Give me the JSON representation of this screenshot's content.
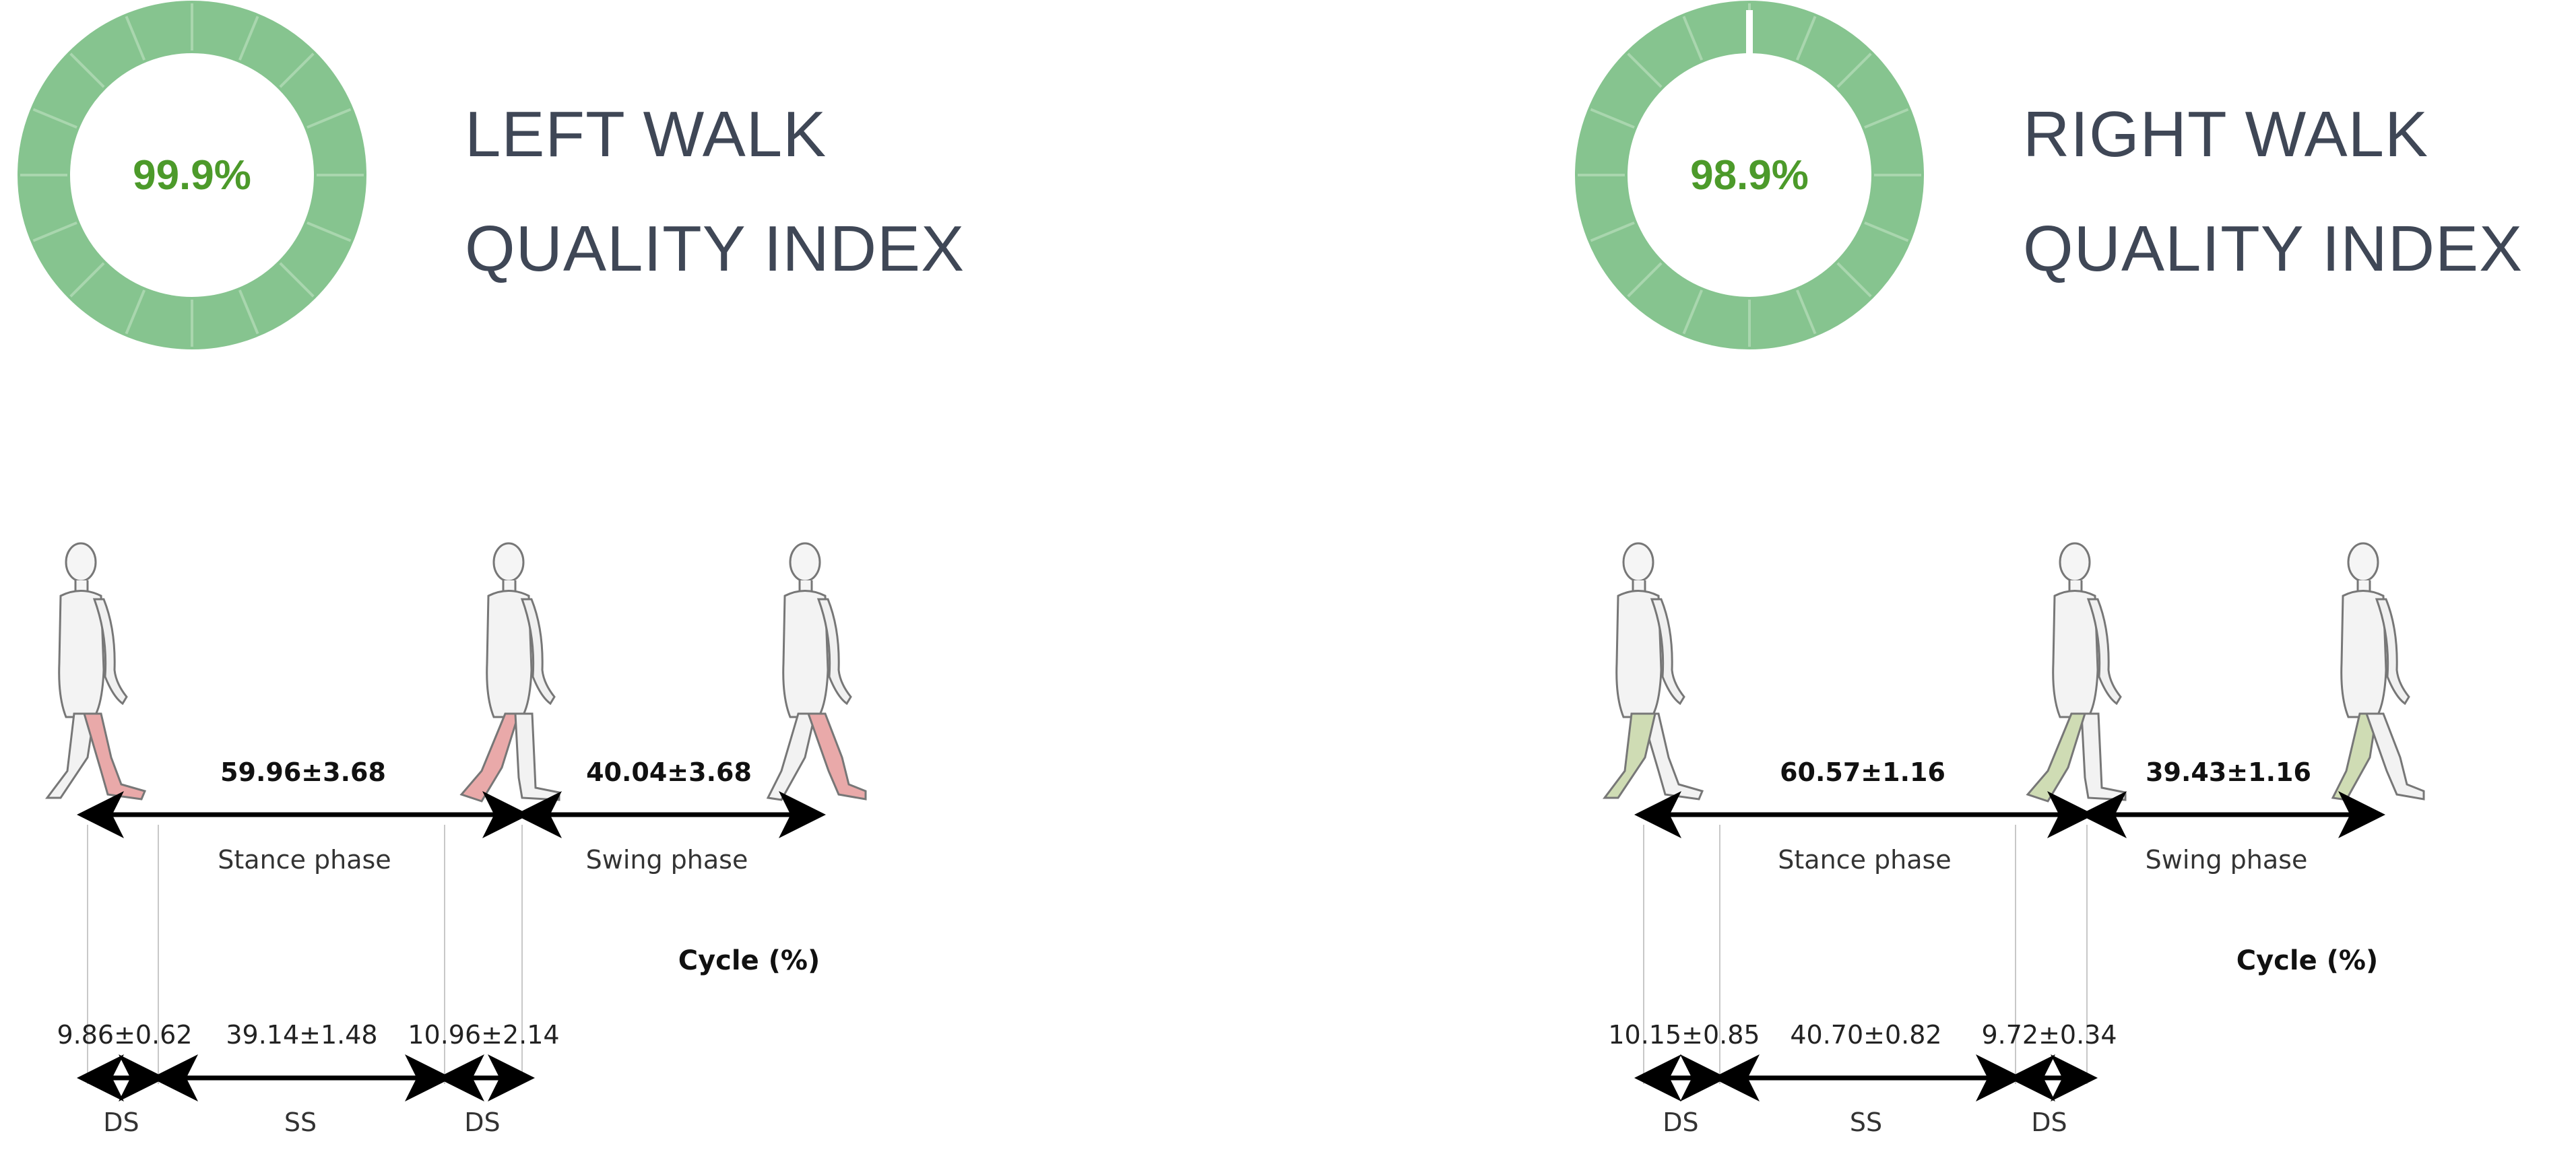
{
  "left": {
    "gauge_label": "99.9%",
    "gauge_value": 99.9,
    "title_line1": "LEFT WALK",
    "title_line2": "QUALITY INDEX",
    "stance_value": "59.96±3.68",
    "swing_value": "40.04±3.68",
    "stance_label": "Stance phase",
    "swing_label": "Swing phase",
    "cycle_label": "Cycle (%)",
    "ds1_value": "9.86±0.62",
    "ss_value": "39.14±1.48",
    "ds2_value": "10.96±2.14",
    "ds1_label": "DS",
    "ss_label": "SS",
    "ds2_label": "DS",
    "leg_color": "#e9a9a9"
  },
  "right": {
    "gauge_label": "98.9%",
    "gauge_value": 98.9,
    "title_line1": "RIGHT WALK",
    "title_line2": "QUALITY INDEX",
    "stance_value": "60.57±1.16",
    "swing_value": "39.43±1.16",
    "stance_label": "Stance phase",
    "swing_label": "Swing phase",
    "cycle_label": "Cycle (%)",
    "ds1_value": "10.15±0.85",
    "ss_value": "40.70±0.82",
    "ds2_value": "9.72±0.34",
    "ds1_label": "DS",
    "ss_label": "SS",
    "ds2_label": "DS",
    "leg_color": "#cfdcb4"
  },
  "colors": {
    "gauge": "#86c48f",
    "gauge_text": "#4c9a2a",
    "title": "#3f4756"
  }
}
